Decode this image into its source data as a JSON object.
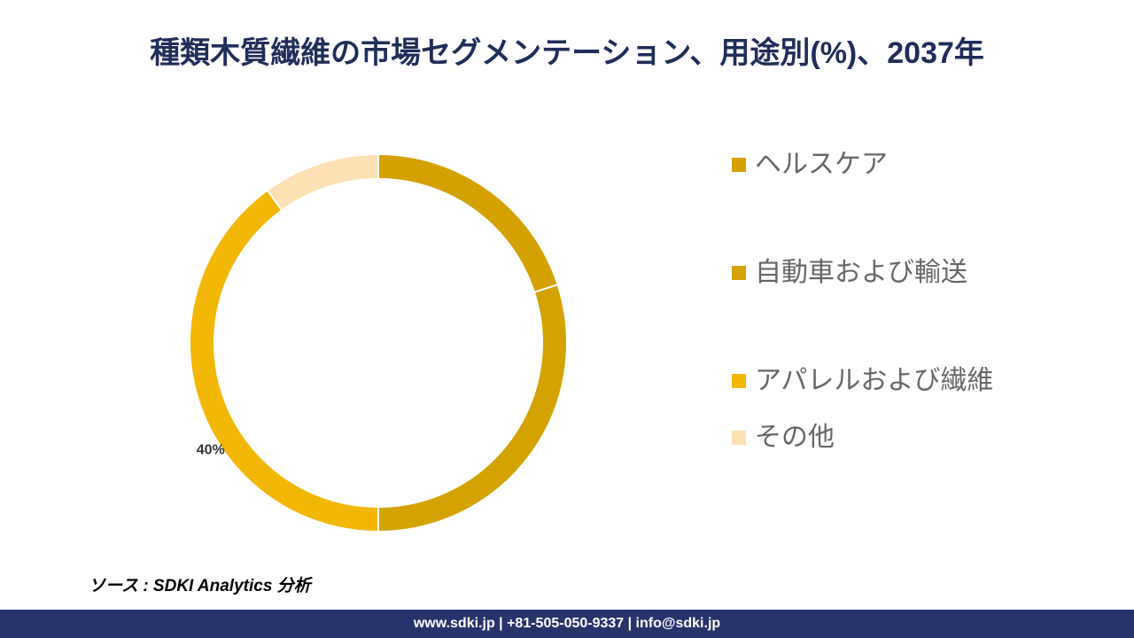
{
  "chart_data": {
    "type": "donut",
    "title": "種類木質繊維の市場セグメンテーション、用途別(%)、2037年",
    "categories": [
      "ヘルスケア",
      "自動車および輸送",
      "アパレルおよび繊維",
      "その他"
    ],
    "values": [
      20,
      30,
      40,
      10
    ],
    "value_labels": [
      null,
      null,
      "40%",
      null
    ],
    "colors": [
      "#d4a100",
      "#d4a300",
      "#f2b705",
      "#fde0b3"
    ],
    "legend": "right"
  },
  "source": "ソース : SDKI Analytics 分析",
  "footer": "www.sdki.jp | +81-505-050-9337 | info@sdki.jp"
}
